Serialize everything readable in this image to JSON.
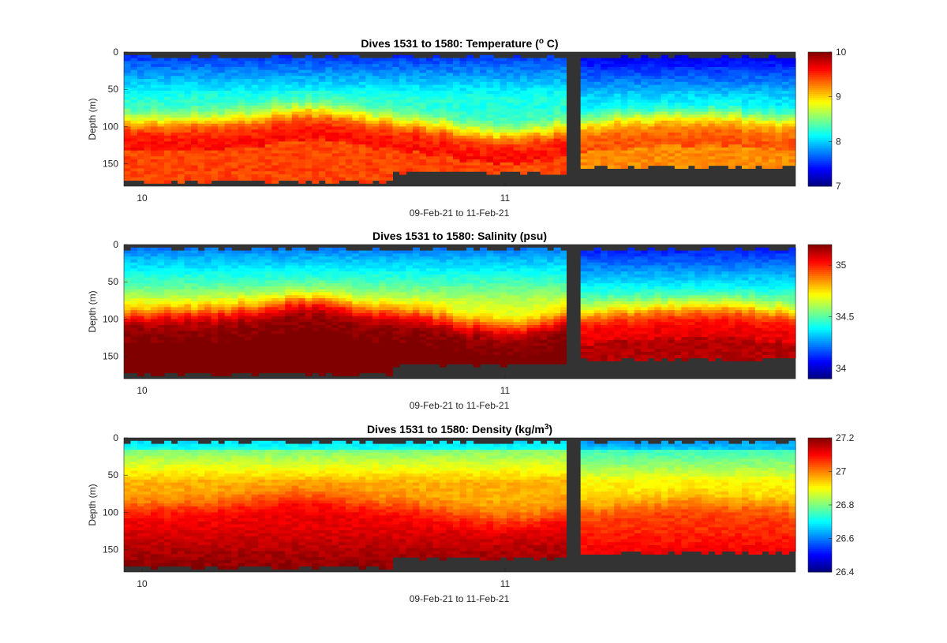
{
  "figure": {
    "background": "#ffffff",
    "nodata_color": "#333333"
  },
  "chart_data": [
    {
      "type": "heatmap",
      "title": "Dives 1531 to 1580: Temperature (",
      "title_sup": "o",
      "title_end": " C)",
      "ylabel": "Depth (m)",
      "xlabel": "09-Feb-21 to 11-Feb-21",
      "x_ticks": [
        "10",
        "11"
      ],
      "y_ticks": [
        "0",
        "50",
        "100",
        "150"
      ],
      "ylim": [
        0,
        180
      ],
      "colormap": "jet",
      "clim": [
        7,
        10
      ],
      "colorbar_ticks": [
        "10",
        "9",
        "8",
        "7"
      ],
      "colorbar_values": [
        10,
        9,
        8,
        7
      ]
    },
    {
      "type": "heatmap",
      "title": "Dives 1531 to 1580: Salinity (psu)",
      "title_sup": "",
      "title_end": "",
      "ylabel": "Depth (m)",
      "xlabel": "09-Feb-21 to 11-Feb-21",
      "x_ticks": [
        "10",
        "11"
      ],
      "y_ticks": [
        "0",
        "50",
        "100",
        "150"
      ],
      "ylim": [
        0,
        180
      ],
      "colormap": "jet",
      "clim": [
        33.9,
        35.2
      ],
      "colorbar_ticks": [
        "35",
        "34.5",
        "34"
      ],
      "colorbar_values": [
        35,
        34.5,
        34
      ]
    },
    {
      "type": "heatmap",
      "title": "Dives 1531 to 1580: Density (kg/m",
      "title_sup": "3",
      "title_end": ")",
      "ylabel": "Depth (m)",
      "xlabel": "09-Feb-21 to 11-Feb-21",
      "x_ticks": [
        "10",
        "11"
      ],
      "y_ticks": [
        "0",
        "50",
        "100",
        "150"
      ],
      "ylim": [
        0,
        180
      ],
      "colormap": "jet",
      "clim": [
        26.4,
        27.2
      ],
      "colorbar_ticks": [
        "27.2",
        "27",
        "26.8",
        "26.6",
        "26.4"
      ],
      "colorbar_values": [
        27.2,
        27,
        26.8,
        26.6,
        26.4
      ]
    }
  ]
}
